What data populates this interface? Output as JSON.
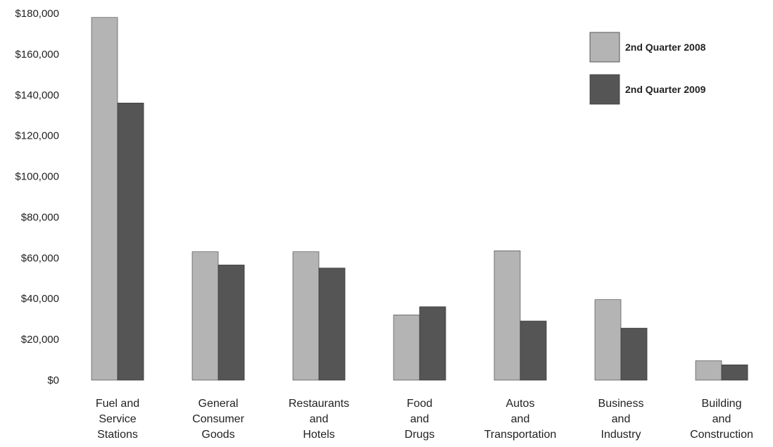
{
  "chart_data": {
    "type": "bar",
    "title": "",
    "xlabel": "",
    "ylabel": "",
    "ylim": [
      0,
      180000
    ],
    "yticks": [
      0,
      20000,
      40000,
      60000,
      80000,
      100000,
      120000,
      140000,
      160000,
      180000
    ],
    "ytick_labels": [
      "$0",
      "$20,000",
      "$40,000",
      "$60,000",
      "$80,000",
      "$100,000",
      "$120,000",
      "$140,000",
      "$160,000",
      "$180,000"
    ],
    "grid": false,
    "legend_position": "top-right",
    "categories": [
      [
        "Fuel and",
        "Service",
        "Stations"
      ],
      [
        "General",
        "Consumer",
        "Goods"
      ],
      [
        "Restaurants",
        "and",
        "Hotels"
      ],
      [
        "Food",
        "and",
        "Drugs"
      ],
      [
        "Autos",
        "and",
        "Transportation"
      ],
      [
        "Business",
        "and",
        "Industry"
      ],
      [
        "Building",
        "and",
        "Construction"
      ]
    ],
    "series": [
      {
        "name": "2nd Quarter 2008",
        "color": "#b4b4b4",
        "values": [
          178000,
          63000,
          63000,
          32000,
          63500,
          39500,
          9500
        ]
      },
      {
        "name": "2nd Quarter 2009",
        "color": "#555555",
        "values": [
          136000,
          56500,
          55000,
          36000,
          29000,
          25500,
          7500
        ]
      }
    ]
  }
}
